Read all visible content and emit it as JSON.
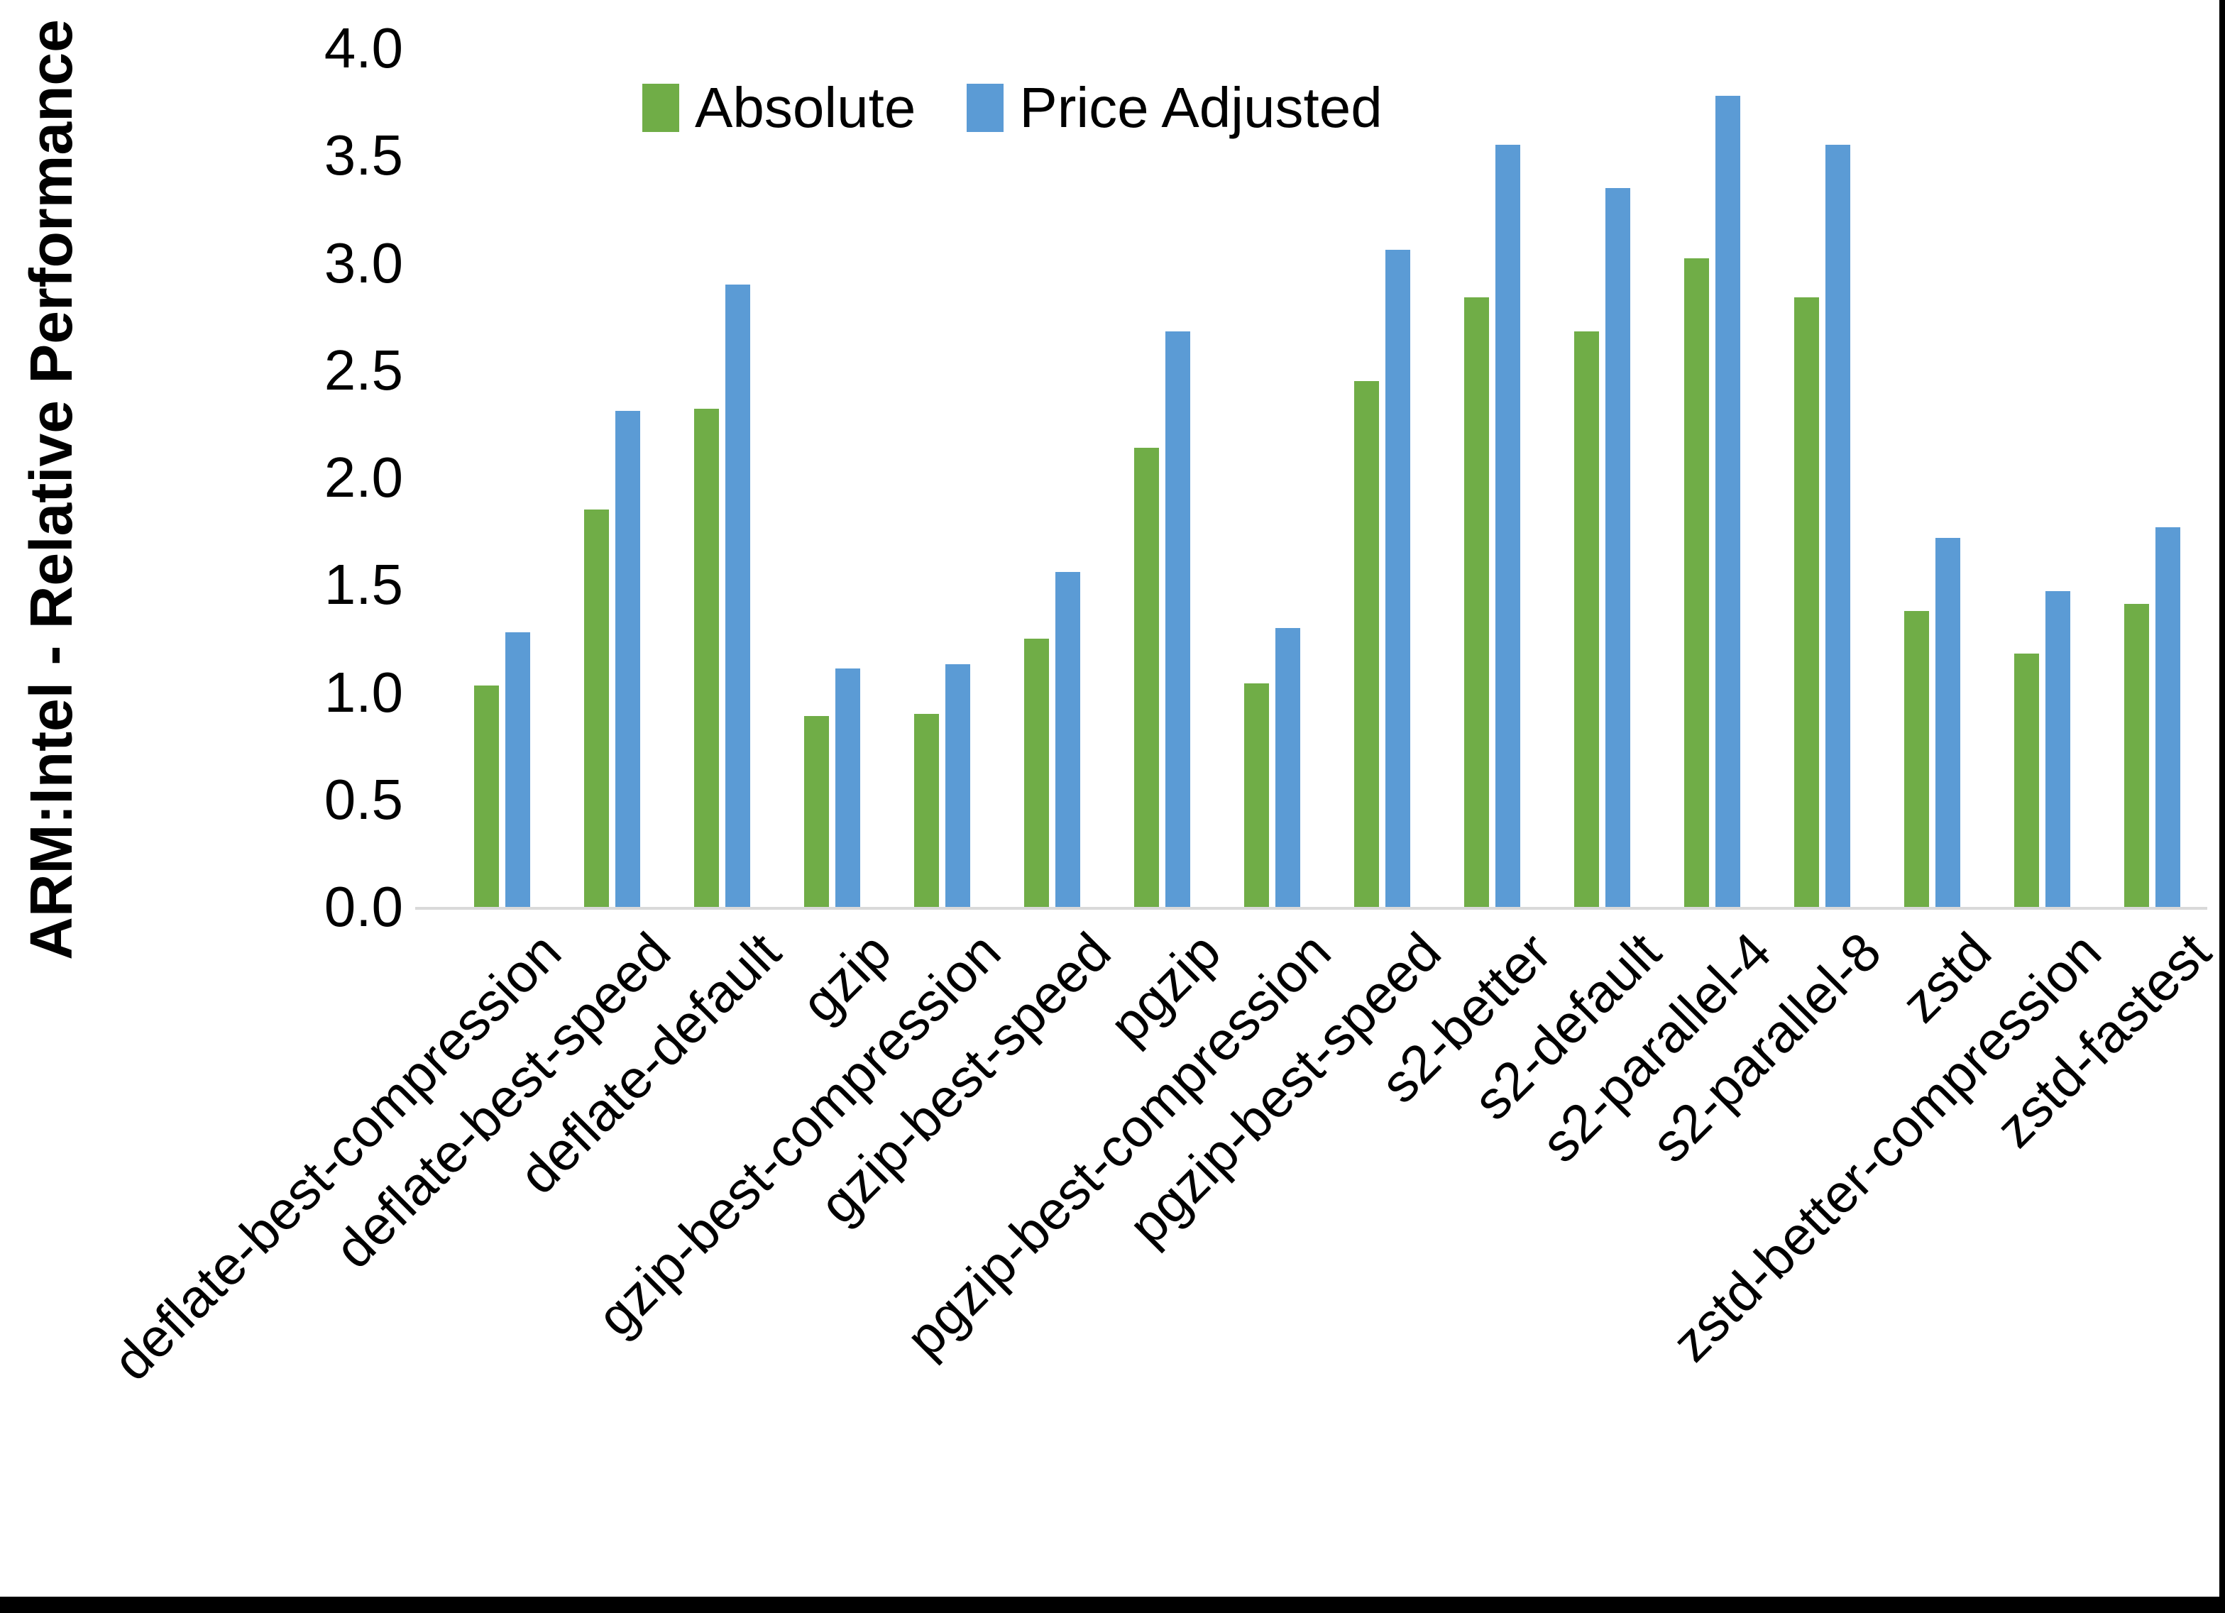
{
  "chart_data": {
    "type": "bar",
    "title": "",
    "ylabel": "ARM:Intel - Relative Performance",
    "xlabel": "",
    "ylim": [
      0.0,
      4.0
    ],
    "ytick_step": 0.5,
    "yticks": [
      "0.0",
      "0.5",
      "1.0",
      "1.5",
      "2.0",
      "2.5",
      "3.0",
      "3.5",
      "4.0"
    ],
    "grid": false,
    "legend_position": "top-center",
    "categories": [
      "deflate-best-compression",
      "deflate-best-speed",
      "deflate-default",
      "gzip",
      "gzip-best-compression",
      "gzip-best-speed",
      "pgzip",
      "pgzip-best-compression",
      "pgzip-best-speed",
      "s2-better",
      "s2-default",
      "s2-parallel-4",
      "s2-parallel-8",
      "zstd",
      "zstd-better-compression",
      "zstd-fastest"
    ],
    "series": [
      {
        "name": "Absolute",
        "color": "#70AD47",
        "values": [
          1.03,
          1.85,
          2.32,
          0.89,
          0.9,
          1.25,
          2.14,
          1.04,
          2.45,
          2.84,
          2.68,
          3.02,
          2.84,
          1.38,
          1.18,
          1.41
        ]
      },
      {
        "name": "Price Adjusted",
        "color": "#5B9BD5",
        "values": [
          1.28,
          2.31,
          2.9,
          1.11,
          1.13,
          1.56,
          2.68,
          1.3,
          3.06,
          3.55,
          3.35,
          3.78,
          3.55,
          1.72,
          1.47,
          1.77
        ]
      }
    ]
  },
  "colors": {
    "background": "#FFFFFF",
    "axis_line": "#D9D9D9",
    "text": "#000000",
    "frame": "#000000"
  }
}
